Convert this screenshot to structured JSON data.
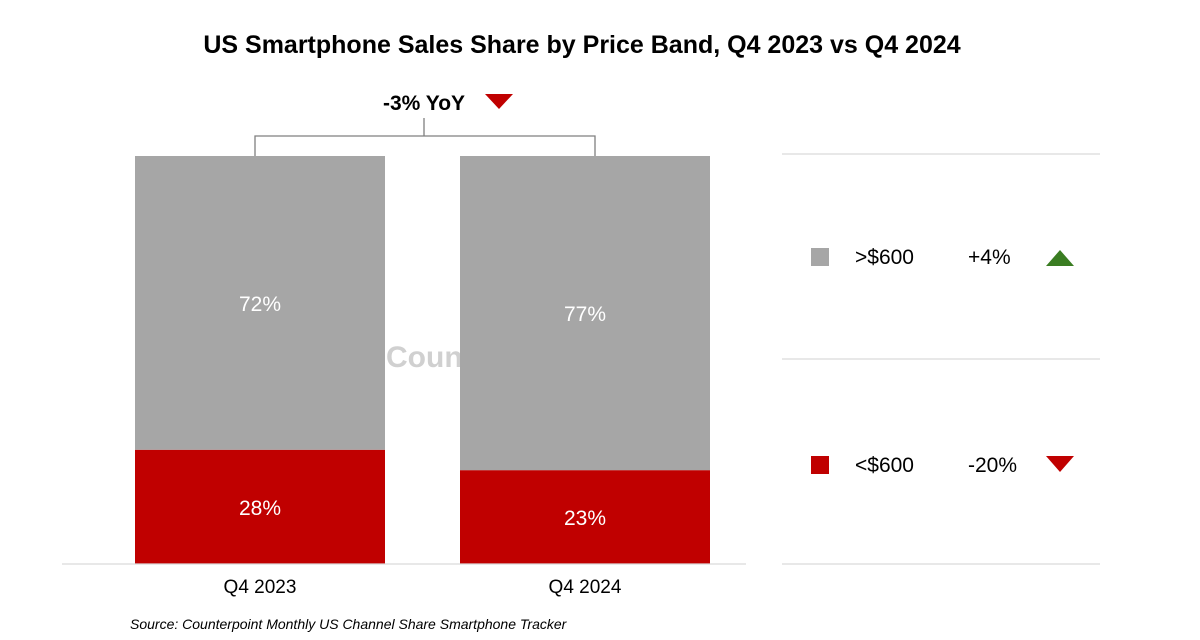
{
  "chart_data": {
    "type": "bar",
    "stacked": true,
    "percent": true,
    "title": "US Smartphone Sales Share by Price Band, Q4 2023 vs Q4 2024",
    "categories": [
      "Q4 2023",
      "Q4 2024"
    ],
    "series": [
      {
        "name": "<$600",
        "values": [
          28,
          23
        ],
        "labels": [
          "28%",
          "23%"
        ],
        "color": "#c00000",
        "change": "-20%",
        "direction": "down"
      },
      {
        "name": ">$600",
        "values": [
          72,
          77
        ],
        "labels": [
          "72%",
          "77%"
        ],
        "color": "#a6a6a6",
        "change": "+4%",
        "direction": "up"
      }
    ],
    "ylim": [
      0,
      100
    ],
    "grid": false,
    "legend_position": "right",
    "annotation": "-3% YoY",
    "annotation_direction": "down"
  },
  "source": "Source: Counterpoint Monthly US Channel Share Smartphone Tracker",
  "watermark": "Counterpoint",
  "colors": {
    "up": "#3a7d22",
    "down": "#c00000",
    "axis": "#d9d9d9",
    "bracket": "#7f7f7f"
  }
}
